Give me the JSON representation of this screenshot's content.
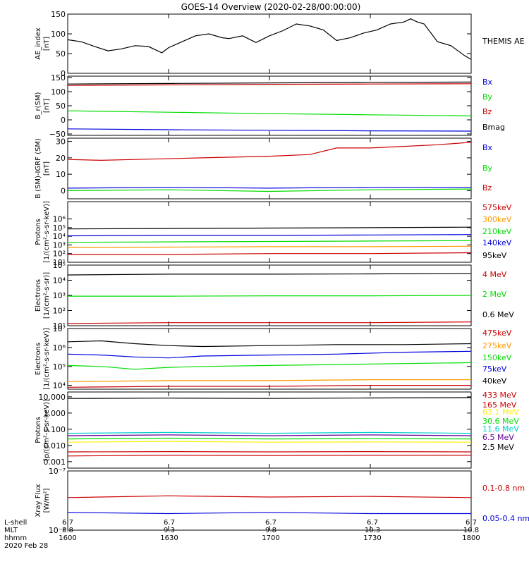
{
  "title": "GOES-14 Overview (2020-02-28/00:00:00)",
  "colors": {
    "black": "#000000",
    "red": "#cc0000",
    "green": "#00dd00",
    "blue": "#0000dd",
    "orange": "#ff9900",
    "cyan": "#00cccc",
    "yellow": "#ffee00",
    "purple": "#660099"
  },
  "footer": {
    "row_labels": [
      "L-shell",
      "MLT",
      "hhmm",
      "2020 Feb 28"
    ],
    "columns": [
      {
        "lshell": "6.7",
        "mlt": "8.8",
        "hhmm": "1600"
      },
      {
        "lshell": "6.7",
        "mlt": "9.3",
        "hhmm": "1630"
      },
      {
        "lshell": "6.7",
        "mlt": "9.8",
        "hhmm": "1700"
      },
      {
        "lshell": "6.7",
        "mlt": "10.3",
        "hhmm": "1730"
      },
      {
        "lshell": "6.7",
        "mlt": "10.8",
        "hhmm": "1800"
      }
    ]
  },
  "chart_data": [
    {
      "type": "line",
      "scale": "linear",
      "ylabel": "AE_index",
      "yunit": "[nT]",
      "ylim": [
        0,
        150
      ],
      "yticks": [
        "0",
        "50",
        "100",
        "150"
      ],
      "ytick_values": [
        0,
        50,
        100,
        150
      ],
      "xlim": [
        0,
        120
      ],
      "series": [
        {
          "name": "THEMIS AE",
          "color": "black",
          "x": [
            0,
            4,
            8,
            12,
            16,
            20,
            24,
            28,
            30,
            34,
            38,
            42,
            46,
            48,
            52,
            56,
            60,
            64,
            68,
            72,
            76,
            80,
            84,
            88,
            92,
            96,
            100,
            102,
            104,
            106,
            110,
            114,
            118,
            120
          ],
          "values": [
            85,
            80,
            68,
            57,
            62,
            70,
            68,
            52,
            65,
            80,
            95,
            100,
            90,
            88,
            95,
            78,
            95,
            108,
            125,
            120,
            110,
            83,
            90,
            102,
            110,
            125,
            130,
            138,
            130,
            125,
            80,
            70,
            45,
            35
          ]
        }
      ]
    },
    {
      "type": "line",
      "scale": "linear",
      "ylabel": "B_r(SM)",
      "yunit": "[nT]",
      "ylim": [
        -55,
        155
      ],
      "yticks": [
        "−50",
        "0",
        "50",
        "100",
        "150"
      ],
      "ytick_values": [
        -50,
        0,
        50,
        100,
        150
      ],
      "xlim": [
        0,
        120
      ],
      "series": [
        {
          "name": "Bx",
          "color": "blue",
          "x": [
            0,
            30,
            60,
            90,
            120
          ],
          "values": [
            -32,
            -35,
            -37,
            -39,
            -40
          ]
        },
        {
          "name": "By",
          "color": "green",
          "x": [
            0,
            30,
            60,
            90,
            120
          ],
          "values": [
            32,
            27,
            22,
            18,
            14
          ]
        },
        {
          "name": "Bz",
          "color": "red",
          "x": [
            0,
            30,
            60,
            90,
            120
          ],
          "values": [
            122,
            124,
            126,
            127,
            128
          ]
        },
        {
          "name": "Bmag",
          "color": "black",
          "x": [
            0,
            30,
            60,
            90,
            120
          ],
          "values": [
            127,
            129,
            131,
            133,
            134
          ]
        }
      ]
    },
    {
      "type": "line",
      "scale": "linear",
      "ylabel": "B (SM)-IGRF (SM)",
      "yunit": "[nT]",
      "ylim": [
        -5,
        32
      ],
      "yticks": [
        "0",
        "10",
        "20",
        "30"
      ],
      "ytick_values": [
        0,
        10,
        20,
        30
      ],
      "xlim": [
        0,
        120
      ],
      "series": [
        {
          "name": "Bx",
          "color": "blue",
          "x": [
            0,
            30,
            60,
            90,
            120
          ],
          "values": [
            1.5,
            2,
            1.5,
            2,
            2
          ]
        },
        {
          "name": "By",
          "color": "green",
          "x": [
            0,
            30,
            60,
            90,
            120
          ],
          "values": [
            0,
            0.5,
            -0.5,
            0.5,
            1
          ]
        },
        {
          "name": "Bz",
          "color": "red",
          "x": [
            0,
            10,
            20,
            40,
            60,
            72,
            80,
            90,
            100,
            110,
            120
          ],
          "values": [
            19,
            18.5,
            19,
            20,
            21,
            22,
            26,
            26,
            27,
            28,
            29.5
          ]
        }
      ]
    },
    {
      "type": "line",
      "scale": "log",
      "ylabel": "Protons",
      "yunit": "[1/(cm²-s-sr-keV)]",
      "ylim": [
        1,
        8
      ],
      "yticks": [
        "10¹",
        "10²",
        "10³",
        "10⁴",
        "10⁵",
        "10⁶"
      ],
      "ytick_values": [
        1,
        2,
        3,
        4,
        5,
        6
      ],
      "xlim": [
        0,
        120
      ],
      "series": [
        {
          "name": "575keV",
          "color": "red",
          "x": [
            0,
            30,
            60,
            90,
            120
          ],
          "values": [
            1.9,
            1.9,
            2.0,
            2.0,
            2.1
          ]
        },
        {
          "name": "300keV",
          "color": "orange",
          "x": [
            0,
            30,
            60,
            90,
            120
          ],
          "values": [
            2.7,
            2.75,
            2.8,
            2.8,
            2.85
          ]
        },
        {
          "name": "210keV",
          "color": "green",
          "x": [
            0,
            30,
            60,
            90,
            120
          ],
          "values": [
            3.3,
            3.35,
            3.4,
            3.45,
            3.5
          ]
        },
        {
          "name": "140keV",
          "color": "blue",
          "x": [
            0,
            30,
            60,
            90,
            120
          ],
          "values": [
            4.05,
            4.1,
            4.1,
            4.15,
            4.2
          ]
        },
        {
          "name": "95keV",
          "color": "black",
          "x": [
            0,
            30,
            60,
            90,
            120
          ],
          "values": [
            4.85,
            4.9,
            4.95,
            5.0,
            5.05
          ]
        }
      ]
    },
    {
      "type": "line",
      "scale": "log",
      "ylabel": "Electrons",
      "yunit": "[1/(cm²-s-sr)]",
      "ylim": [
        1,
        5
      ],
      "yticks": [
        "10¹",
        "10²",
        "10³",
        "10⁴",
        "10⁵"
      ],
      "ytick_values": [
        1,
        2,
        3,
        4,
        5
      ],
      "xlim": [
        0,
        120
      ],
      "series": [
        {
          "name": "4 MeV",
          "color": "red",
          "x": [
            0,
            30,
            60,
            90,
            120
          ],
          "values": [
            1.15,
            1.2,
            1.2,
            1.2,
            1.25
          ]
        },
        {
          "name": "2 MeV",
          "color": "green",
          "x": [
            0,
            30,
            60,
            90,
            120
          ],
          "values": [
            2.95,
            2.95,
            2.97,
            2.97,
            3.0
          ]
        },
        {
          "name": "0.6 MeV",
          "color": "black",
          "x": [
            0,
            30,
            60,
            90,
            120
          ],
          "values": [
            4.35,
            4.4,
            4.4,
            4.42,
            4.45
          ]
        }
      ]
    },
    {
      "type": "line",
      "scale": "log",
      "ylabel": "Electrons",
      "yunit": "[1/(cm²-s-sr-keV)]",
      "ylim": [
        3.8,
        7
      ],
      "yticks": [
        "10⁴",
        "10⁵",
        "10⁶",
        "10⁷"
      ],
      "ytick_values": [
        4,
        5,
        6,
        7
      ],
      "xlim": [
        0,
        120
      ],
      "series": [
        {
          "name": "475keV",
          "color": "red",
          "x": [
            0,
            30,
            60,
            90,
            120
          ],
          "values": [
            3.9,
            3.95,
            3.95,
            4.0,
            4.0
          ]
        },
        {
          "name": "275keV",
          "color": "orange",
          "x": [
            0,
            30,
            60,
            90,
            120
          ],
          "values": [
            4.2,
            4.25,
            4.25,
            4.3,
            4.3
          ]
        },
        {
          "name": "150keV",
          "color": "green",
          "x": [
            0,
            10,
            20,
            30,
            40,
            60,
            80,
            100,
            120
          ],
          "values": [
            5.05,
            5.0,
            4.85,
            4.95,
            5.0,
            5.05,
            5.1,
            5.15,
            5.2
          ]
        },
        {
          "name": "75keV",
          "color": "blue",
          "x": [
            0,
            10,
            20,
            30,
            40,
            60,
            80,
            100,
            120
          ],
          "values": [
            5.65,
            5.6,
            5.5,
            5.45,
            5.55,
            5.6,
            5.65,
            5.75,
            5.8
          ]
        },
        {
          "name": "40keV",
          "color": "black",
          "x": [
            0,
            10,
            20,
            30,
            40,
            60,
            80,
            100,
            120
          ],
          "values": [
            6.3,
            6.35,
            6.2,
            6.1,
            6.05,
            6.1,
            6.15,
            6.15,
            6.2
          ]
        }
      ]
    },
    {
      "type": "line",
      "scale": "log",
      "ylabel": "Protons",
      "yunit": "[p/(cm²-s-sr-keV)]",
      "ylim": [
        -3.4,
        1.3
      ],
      "yticks": [
        "0.001",
        "0.010",
        "0.100",
        "1.000",
        "10.000"
      ],
      "ytick_values": [
        -3,
        -2,
        -1,
        0,
        1
      ],
      "xlim": [
        0,
        120
      ],
      "series": [
        {
          "name": "433 MeV",
          "color": "red",
          "x": [
            0,
            30,
            60,
            90,
            120
          ],
          "values": [
            -2.65,
            -2.6,
            -2.62,
            -2.6,
            -2.6
          ]
        },
        {
          "name": "165 MeV",
          "color": "red",
          "x": [
            0,
            30,
            60,
            90,
            120
          ],
          "values": [
            -2.4,
            -2.38,
            -2.4,
            -2.38,
            -2.4
          ]
        },
        {
          "name": "63.1 MeV",
          "color": "yellow",
          "x": [
            0,
            30,
            60,
            90,
            120
          ],
          "values": [
            -1.8,
            -1.75,
            -1.8,
            -1.78,
            -1.8
          ]
        },
        {
          "name": "30.6 MeV",
          "color": "green",
          "x": [
            0,
            30,
            60,
            90,
            120
          ],
          "values": [
            -1.6,
            -1.55,
            -1.6,
            -1.58,
            -1.6
          ]
        },
        {
          "name": "11.6 MeV",
          "color": "cyan",
          "x": [
            0,
            30,
            60,
            90,
            120
          ],
          "values": [
            -1.25,
            -1.2,
            -1.25,
            -1.2,
            -1.25
          ]
        },
        {
          "name": "6.5 MeV",
          "color": "purple",
          "x": [
            0,
            30,
            60,
            90,
            120
          ],
          "values": [
            -1.4,
            -1.35,
            -1.4,
            -1.35,
            -1.4
          ]
        },
        {
          "name": "2.5 MeV",
          "color": "black",
          "x": [
            0,
            30,
            60,
            90,
            120
          ],
          "values": [
            0.9,
            0.92,
            0.9,
            0.93,
            0.95
          ]
        }
      ]
    },
    {
      "type": "line",
      "scale": "log",
      "ylabel": "Xray Flux",
      "yunit": "[W/m²]",
      "ylim": [
        -8,
        -7
      ],
      "yticks": [
        "10⁻⁸",
        "10⁻⁷"
      ],
      "ytick_values": [
        -8,
        -7
      ],
      "xlim": [
        0,
        120
      ],
      "series": [
        {
          "name": "0.1-0.8 nm",
          "color": "red",
          "x": [
            0,
            30,
            60,
            90,
            120
          ],
          "values": [
            -7.45,
            -7.42,
            -7.44,
            -7.43,
            -7.45
          ]
        },
        {
          "name": "0.05-0.4 nm",
          "color": "blue",
          "x": [
            0,
            30,
            60,
            90,
            120
          ],
          "values": [
            -7.7,
            -7.72,
            -7.7,
            -7.72,
            -7.72
          ]
        }
      ]
    }
  ]
}
